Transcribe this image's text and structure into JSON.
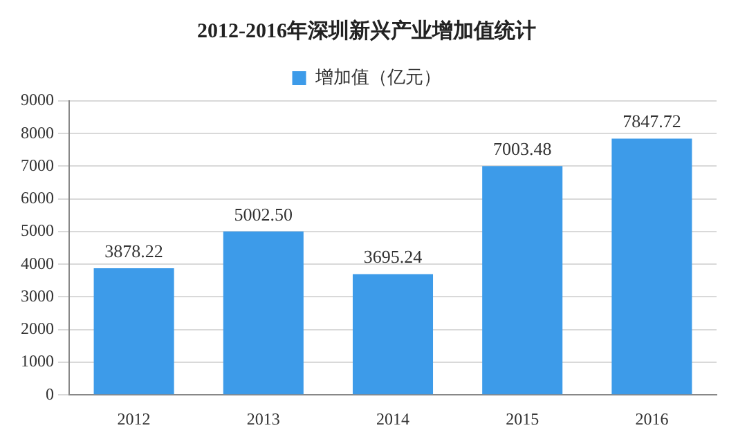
{
  "chart_data": {
    "type": "bar",
    "title": "2012-2016年深圳新兴产业增加值统计",
    "categories": [
      "2012",
      "2013",
      "2014",
      "2015",
      "2016"
    ],
    "series": [
      {
        "name": "增加值（亿元）",
        "color": "#3d9be9",
        "values": [
          3878.22,
          5002.5,
          3695.24,
          7003.48,
          7847.72
        ],
        "value_labels": [
          "3878.22",
          "5002.50",
          "3695.24",
          "7003.48",
          "7847.72"
        ]
      }
    ],
    "ylim": [
      0,
      9000
    ],
    "yticks": [
      0,
      1000,
      2000,
      3000,
      4000,
      5000,
      6000,
      7000,
      8000,
      9000
    ],
    "grid": "y",
    "legend": "top"
  }
}
